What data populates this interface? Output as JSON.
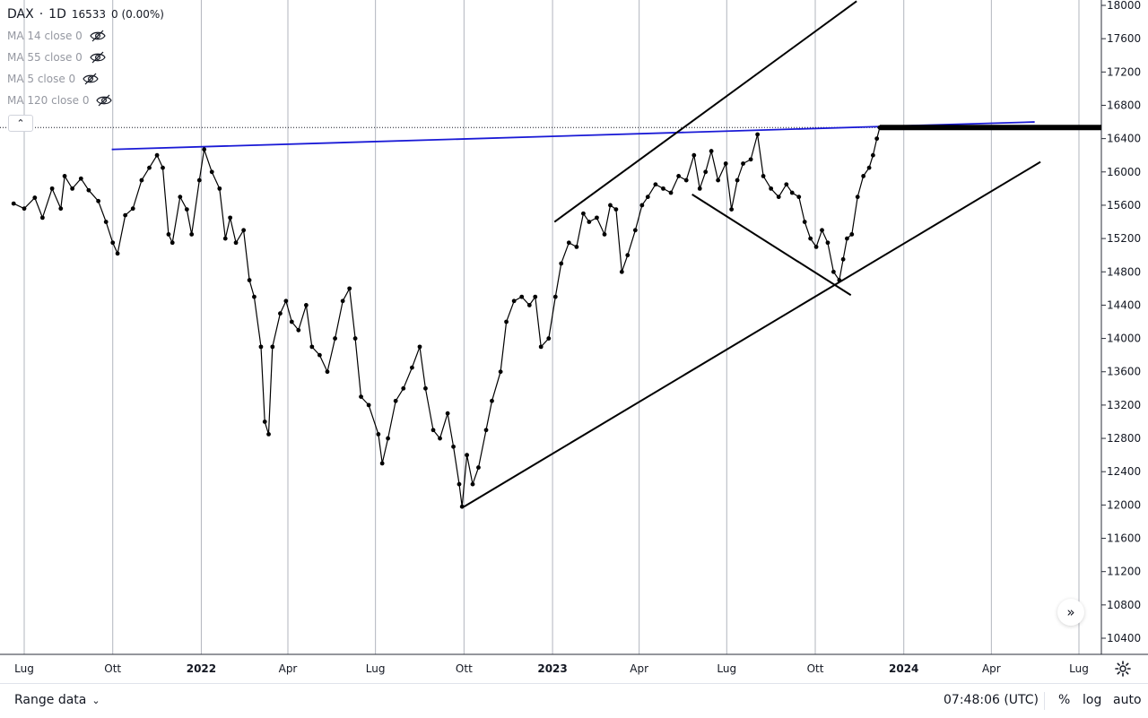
{
  "legend": {
    "symbol": "DAX",
    "sep": "·",
    "interval": "1D",
    "last": "16533",
    "change": "0 (0.00%)",
    "ma": [
      {
        "label": "MA 14 close 0"
      },
      {
        "label": "MA 55 close 0"
      },
      {
        "label": "MA 5 close 0"
      },
      {
        "label": "MA 120 close 0"
      }
    ]
  },
  "bottom": {
    "range_label": "Range data",
    "time": "07:48:06 (UTC)",
    "percent": "%",
    "log": "log",
    "auto": "auto"
  },
  "chart_data": {
    "type": "line",
    "title": "",
    "ylim": [
      10200,
      18000
    ],
    "y_ticks": [
      18000,
      17600,
      17200,
      16800,
      16400,
      16000,
      15600,
      15200,
      14800,
      14400,
      14000,
      13600,
      13200,
      12800,
      12400,
      12000,
      11600,
      11200,
      10800,
      10400
    ],
    "x_ticks": [
      {
        "label": "Lug",
        "date": "2021-07-01",
        "bold": false
      },
      {
        "label": "Ott",
        "date": "2021-10-01",
        "bold": false
      },
      {
        "label": "2022",
        "date": "2022-01-01",
        "bold": true
      },
      {
        "label": "Apr",
        "date": "2022-04-01",
        "bold": false
      },
      {
        "label": "Lug",
        "date": "2022-07-01",
        "bold": false
      },
      {
        "label": "Ott",
        "date": "2022-10-01",
        "bold": false
      },
      {
        "label": "2023",
        "date": "2023-01-01",
        "bold": true
      },
      {
        "label": "Apr",
        "date": "2023-04-01",
        "bold": false
      },
      {
        "label": "Lug",
        "date": "2023-07-01",
        "bold": false
      },
      {
        "label": "Ott",
        "date": "2023-10-01",
        "bold": false
      },
      {
        "label": "2024",
        "date": "2024-01-01",
        "bold": true
      },
      {
        "label": "Apr",
        "date": "2024-04-01",
        "bold": false
      },
      {
        "label": "Lug",
        "date": "2024-07-01",
        "bold": false
      }
    ],
    "last_value": 16533,
    "series": [
      {
        "points": [
          [
            "2021-06-20",
            15620
          ],
          [
            "2021-07-01",
            15560
          ],
          [
            "2021-07-12",
            15690
          ],
          [
            "2021-07-20",
            15450
          ],
          [
            "2021-07-30",
            15800
          ],
          [
            "2021-08-08",
            15560
          ],
          [
            "2021-08-12",
            15950
          ],
          [
            "2021-08-20",
            15800
          ],
          [
            "2021-08-29",
            15920
          ],
          [
            "2021-09-06",
            15780
          ],
          [
            "2021-09-16",
            15650
          ],
          [
            "2021-09-24",
            15400
          ],
          [
            "2021-10-01",
            15150
          ],
          [
            "2021-10-06",
            15020
          ],
          [
            "2021-10-14",
            15480
          ],
          [
            "2021-10-22",
            15560
          ],
          [
            "2021-10-31",
            15900
          ],
          [
            "2021-11-08",
            16050
          ],
          [
            "2021-11-16",
            16200
          ],
          [
            "2021-11-22",
            16050
          ],
          [
            "2021-11-28",
            15250
          ],
          [
            "2021-12-02",
            15150
          ],
          [
            "2021-12-10",
            15700
          ],
          [
            "2021-12-17",
            15550
          ],
          [
            "2021-12-22",
            15250
          ],
          [
            "2021-12-30",
            15900
          ],
          [
            "2022-01-04",
            16270
          ],
          [
            "2022-01-12",
            16000
          ],
          [
            "2022-01-20",
            15800
          ],
          [
            "2022-01-26",
            15200
          ],
          [
            "2022-01-31",
            15450
          ],
          [
            "2022-02-06",
            15150
          ],
          [
            "2022-02-14",
            15300
          ],
          [
            "2022-02-20",
            14700
          ],
          [
            "2022-02-25",
            14500
          ],
          [
            "2022-03-04",
            13900
          ],
          [
            "2022-03-08",
            13000
          ],
          [
            "2022-03-12",
            12850
          ],
          [
            "2022-03-16",
            13900
          ],
          [
            "2022-03-24",
            14300
          ],
          [
            "2022-03-30",
            14450
          ],
          [
            "2022-04-05",
            14200
          ],
          [
            "2022-04-12",
            14100
          ],
          [
            "2022-04-20",
            14400
          ],
          [
            "2022-04-26",
            13900
          ],
          [
            "2022-05-04",
            13800
          ],
          [
            "2022-05-12",
            13600
          ],
          [
            "2022-05-20",
            14000
          ],
          [
            "2022-05-28",
            14450
          ],
          [
            "2022-06-04",
            14600
          ],
          [
            "2022-06-10",
            14000
          ],
          [
            "2022-06-16",
            13300
          ],
          [
            "2022-06-24",
            13200
          ],
          [
            "2022-07-04",
            12850
          ],
          [
            "2022-07-08",
            12500
          ],
          [
            "2022-07-14",
            12800
          ],
          [
            "2022-07-22",
            13250
          ],
          [
            "2022-07-30",
            13400
          ],
          [
            "2022-08-08",
            13650
          ],
          [
            "2022-08-16",
            13900
          ],
          [
            "2022-08-22",
            13400
          ],
          [
            "2022-08-30",
            12900
          ],
          [
            "2022-09-06",
            12800
          ],
          [
            "2022-09-14",
            13100
          ],
          [
            "2022-09-20",
            12700
          ],
          [
            "2022-09-26",
            12250
          ],
          [
            "2022-09-29",
            11980
          ],
          [
            "2022-10-04",
            12600
          ],
          [
            "2022-10-10",
            12250
          ],
          [
            "2022-10-16",
            12450
          ],
          [
            "2022-10-24",
            12900
          ],
          [
            "2022-10-30",
            13250
          ],
          [
            "2022-11-08",
            13600
          ],
          [
            "2022-11-14",
            14200
          ],
          [
            "2022-11-22",
            14450
          ],
          [
            "2022-11-30",
            14500
          ],
          [
            "2022-12-08",
            14400
          ],
          [
            "2022-12-14",
            14500
          ],
          [
            "2022-12-20",
            13900
          ],
          [
            "2022-12-28",
            14000
          ],
          [
            "2023-01-04",
            14500
          ],
          [
            "2023-01-10",
            14900
          ],
          [
            "2023-01-18",
            15150
          ],
          [
            "2023-01-26",
            15100
          ],
          [
            "2023-02-02",
            15500
          ],
          [
            "2023-02-08",
            15400
          ],
          [
            "2023-02-16",
            15450
          ],
          [
            "2023-02-24",
            15250
          ],
          [
            "2023-03-02",
            15600
          ],
          [
            "2023-03-08",
            15550
          ],
          [
            "2023-03-14",
            14800
          ],
          [
            "2023-03-20",
            15000
          ],
          [
            "2023-03-28",
            15300
          ],
          [
            "2023-04-04",
            15600
          ],
          [
            "2023-04-10",
            15700
          ],
          [
            "2023-04-18",
            15850
          ],
          [
            "2023-04-26",
            15800
          ],
          [
            "2023-05-04",
            15750
          ],
          [
            "2023-05-12",
            15950
          ],
          [
            "2023-05-20",
            15900
          ],
          [
            "2023-05-28",
            16200
          ],
          [
            "2023-06-03",
            15800
          ],
          [
            "2023-06-09",
            16000
          ],
          [
            "2023-06-15",
            16250
          ],
          [
            "2023-06-22",
            15900
          ],
          [
            "2023-06-30",
            16100
          ],
          [
            "2023-07-06",
            15550
          ],
          [
            "2023-07-12",
            15900
          ],
          [
            "2023-07-18",
            16100
          ],
          [
            "2023-07-26",
            16150
          ],
          [
            "2023-08-02",
            16450
          ],
          [
            "2023-08-08",
            15950
          ],
          [
            "2023-08-16",
            15800
          ],
          [
            "2023-08-24",
            15700
          ],
          [
            "2023-09-01",
            15850
          ],
          [
            "2023-09-07",
            15750
          ],
          [
            "2023-09-14",
            15700
          ],
          [
            "2023-09-20",
            15400
          ],
          [
            "2023-09-26",
            15200
          ],
          [
            "2023-10-02",
            15100
          ],
          [
            "2023-10-08",
            15300
          ],
          [
            "2023-10-14",
            15150
          ],
          [
            "2023-10-20",
            14800
          ],
          [
            "2023-10-26",
            14700
          ],
          [
            "2023-10-30",
            14950
          ],
          [
            "2023-11-03",
            15200
          ],
          [
            "2023-11-08",
            15250
          ],
          [
            "2023-11-14",
            15700
          ],
          [
            "2023-11-20",
            15950
          ],
          [
            "2023-11-26",
            16050
          ],
          [
            "2023-11-30",
            16200
          ],
          [
            "2023-12-04",
            16400
          ],
          [
            "2023-12-07",
            16533
          ]
        ]
      }
    ],
    "drawings": [
      {
        "kind": "trendline",
        "color": "#1a1ad6",
        "from": [
          "2021-09-30",
          16270
        ],
        "to": [
          "2024-05-16",
          16600
        ]
      },
      {
        "kind": "trendline",
        "color": "#000000",
        "from": [
          "2022-10-01",
          11980
        ],
        "to": [
          "2024-05-22",
          16120
        ]
      },
      {
        "kind": "trendline",
        "color": "#000000",
        "from": [
          "2023-01-03",
          15400
        ],
        "to": [
          "2023-11-13",
          18050
        ]
      },
      {
        "kind": "trendline",
        "color": "#000000",
        "from": [
          "2023-05-26",
          15730
        ],
        "to": [
          "2023-11-07",
          14520
        ]
      },
      {
        "kind": "level",
        "color": "#000000",
        "from": "2023-12-07",
        "value": 16533
      }
    ],
    "price_line": {
      "value": 16533,
      "style": "dotted"
    },
    "grid": true
  }
}
